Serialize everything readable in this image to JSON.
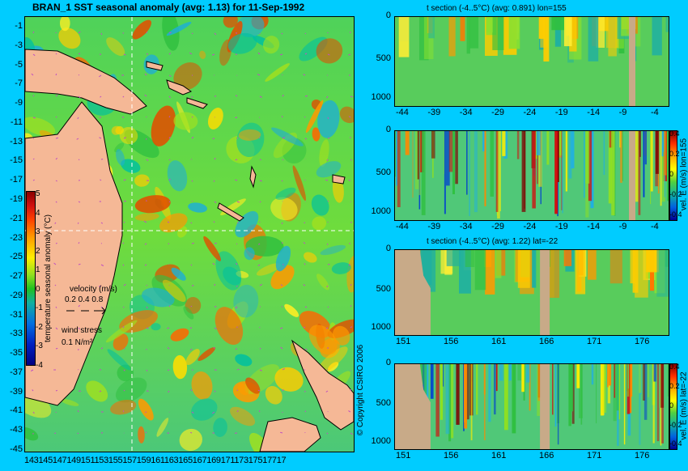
{
  "map": {
    "title": "BRAN_1 SST seasonal anomaly (avg: 1.13) for 11-Sep-1992",
    "lat_ticks": [
      "-1",
      "-3",
      "-5",
      "-7",
      "-9",
      "-11",
      "-13",
      "-15",
      "-17",
      "-19",
      "-21",
      "-23",
      "-25",
      "-27",
      "-29",
      "-31",
      "-33",
      "-35",
      "-37",
      "-39",
      "-41",
      "-43",
      "-45"
    ],
    "lon_ticks_text": "14314514714915115315515715916116316516716917117317517717",
    "colorbar": {
      "label": "temperature seasonal anomaly (°C)",
      "ticks": [
        "5",
        "4",
        "3",
        "2",
        "1",
        "0",
        "-1",
        "-2",
        "-3",
        "-4"
      ]
    },
    "velocity_label": "velocity (m/s)",
    "velocity_values": "0.2 0.4 0.8",
    "wind_label": "wind stress",
    "wind_value": "0.1 N/m²",
    "copyright": "© Copyright CSIRO 2006"
  },
  "sections": [
    {
      "title": "t section (-4..5°C) (avg: 0.891) lon=155",
      "y_ticks": [
        "0",
        "500",
        "1000"
      ],
      "x_ticks": [
        "-44",
        "-39",
        "-34",
        "-29",
        "-24",
        "-19",
        "-14",
        "-9",
        "-4"
      ]
    },
    {
      "title": "",
      "side_label": "vel. E (m/s) lon=155",
      "cb_ticks": [
        "0.4",
        "0.2",
        "0",
        "-0.2",
        "-0.4"
      ],
      "y_ticks": [
        "0",
        "500",
        "1000"
      ],
      "x_ticks": [
        "-44",
        "-39",
        "-34",
        "-29",
        "-24",
        "-19",
        "-14",
        "-9",
        "-4"
      ]
    },
    {
      "title": "t section (-4..5°C) (avg: 1.22) lat=-22",
      "y_ticks": [
        "0",
        "500",
        "1000"
      ],
      "x_ticks": [
        "151",
        "156",
        "161",
        "166",
        "171",
        "176"
      ]
    },
    {
      "title": "",
      "side_label": "vel. E (m/s) lat=-22",
      "cb_ticks": [
        "0.4",
        "0.2",
        "0",
        "-0.2",
        "-0.4"
      ],
      "y_ticks": [
        "0",
        "500",
        "1000"
      ],
      "x_ticks": [
        "151",
        "156",
        "161",
        "166",
        "171",
        "176"
      ]
    }
  ],
  "colors": {
    "background": "#00ccff",
    "land": "#f5b896",
    "section_land": "#c8aa88",
    "crosshair": "#ffffff"
  }
}
